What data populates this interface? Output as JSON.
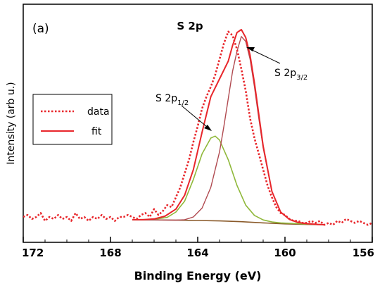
{
  "chart_data": {
    "type": "line",
    "title": "S 2p",
    "panel_label": "(a)",
    "xlabel": "Binding Energy (eV)",
    "ylabel": "Intensity (arb u.)",
    "xlim": [
      172,
      156
    ],
    "x_reversed": true,
    "xticks": [
      172,
      168,
      164,
      160,
      156
    ],
    "ylim": [
      0,
      100
    ],
    "yticks_shown": false,
    "grid": false,
    "legend": {
      "placement": "middle-left",
      "entries": [
        "data",
        "fit"
      ]
    },
    "annotations": [
      {
        "base": "S 2p",
        "sub": "1/2",
        "points_to_x": 163.3
      },
      {
        "base": "S 2p",
        "sub": "3/2",
        "points_to_x": 162.1
      }
    ],
    "colors": {
      "data": "#e8262b",
      "fit": "#e8262b",
      "peak_3_2": "#b04a50",
      "peak_1_2": "#8fb83a",
      "background": "#8a5a2a"
    },
    "series": [
      {
        "name": "data",
        "style": "dotted",
        "x": [
          172.0,
          171.8,
          171.6,
          171.4,
          171.2,
          171.0,
          170.8,
          170.6,
          170.4,
          170.2,
          170.0,
          169.8,
          169.6,
          169.4,
          169.2,
          169.0,
          168.8,
          168.6,
          168.4,
          168.2,
          168.0,
          167.8,
          167.6,
          167.4,
          167.2,
          167.0,
          166.8,
          166.6,
          166.4,
          166.2,
          166.0,
          165.8,
          165.6,
          165.4,
          165.2,
          165.0,
          164.8,
          164.6,
          164.4,
          164.2,
          164.0,
          163.8,
          163.6,
          163.4,
          163.2,
          163.0,
          162.8,
          162.6,
          162.4,
          162.2,
          162.0,
          161.8,
          161.6,
          161.4,
          161.2,
          161.0,
          160.8,
          160.6,
          160.4,
          160.2,
          160.0,
          159.8,
          159.6,
          159.4,
          159.2,
          159.0,
          158.8,
          158.6,
          158.4,
          158.2,
          158.0,
          157.8,
          157.6,
          157.4,
          157.2,
          157.0,
          156.8,
          156.6,
          156.4,
          156.2,
          156.0
        ],
        "y": [
          5,
          6,
          4,
          5,
          7,
          3,
          5,
          4,
          6,
          4,
          5,
          3,
          7,
          4,
          5,
          3,
          5,
          4,
          6,
          4,
          5,
          3,
          5,
          5,
          6,
          5,
          4,
          6,
          7,
          5,
          9,
          6,
          8,
          11,
          10,
          15,
          20,
          27,
          34,
          43,
          51,
          60,
          66,
          71,
          77,
          85,
          93,
          99,
          97,
          90,
          80,
          69,
          55,
          45,
          37,
          29,
          21,
          15,
          10,
          7,
          6,
          4,
          3,
          3,
          2,
          2,
          3,
          2,
          3,
          1,
          2,
          1,
          3,
          2,
          4,
          3,
          2,
          3,
          2,
          1,
          2
        ]
      },
      {
        "name": "fit",
        "x": [
          167.0,
          166.5,
          166.0,
          165.5,
          165.0,
          164.6,
          164.2,
          163.8,
          163.4,
          163.0,
          162.6,
          162.4,
          162.2,
          162.0,
          161.8,
          161.6,
          161.4,
          161.2,
          161.0,
          160.6,
          160.2,
          159.8,
          159.4,
          159.0,
          158.5,
          158.2
        ],
        "y": [
          3.6,
          3.6,
          4.0,
          5.4,
          9.0,
          16.0,
          29.0,
          48.0,
          66.0,
          75.0,
          84.0,
          92.0,
          98.5,
          100.0,
          96.0,
          87.0,
          73.0,
          57.0,
          41.0,
          18.0,
          7.5,
          3.8,
          2.2,
          1.6,
          1.2,
          1.1
        ]
      },
      {
        "name": "S 2p3/2 component",
        "x": [
          167.0,
          166.0,
          165.0,
          164.6,
          164.2,
          163.8,
          163.4,
          163.0,
          162.8,
          162.6,
          162.4,
          162.2,
          162.0,
          161.8,
          161.6,
          161.4,
          161.2,
          161.0,
          160.6,
          160.2,
          159.8,
          159.4,
          159.0,
          158.5,
          158.2
        ],
        "y": [
          3.6,
          3.5,
          3.4,
          3.6,
          5.0,
          9.5,
          20.0,
          38.0,
          51.0,
          65.0,
          79.0,
          89.0,
          96.5,
          94.0,
          85.0,
          71.0,
          55.0,
          40.0,
          18.0,
          7.5,
          3.8,
          2.2,
          1.6,
          1.2,
          1.1
        ]
      },
      {
        "name": "S 2p1/2 component",
        "x": [
          167.0,
          166.0,
          165.4,
          165.0,
          164.6,
          164.2,
          163.8,
          163.4,
          163.2,
          163.0,
          162.6,
          162.2,
          161.8,
          161.4,
          161.0,
          160.6,
          160.2,
          159.8,
          159.4,
          159.0,
          158.5,
          158.2
        ],
        "y": [
          3.6,
          3.8,
          4.8,
          7.5,
          13.0,
          24.0,
          37.0,
          45.0,
          46.0,
          44.0,
          34.0,
          21.0,
          11.0,
          5.8,
          3.5,
          2.5,
          2.0,
          1.8,
          1.6,
          1.4,
          1.2,
          1.1
        ]
      },
      {
        "name": "background",
        "x": [
          167.0,
          166.0,
          165.0,
          164.0,
          163.0,
          162.0,
          161.0,
          160.0,
          159.0,
          158.2
        ],
        "y": [
          3.6,
          3.5,
          3.4,
          3.2,
          3.0,
          2.6,
          2.0,
          1.5,
          1.2,
          1.1
        ]
      }
    ]
  }
}
